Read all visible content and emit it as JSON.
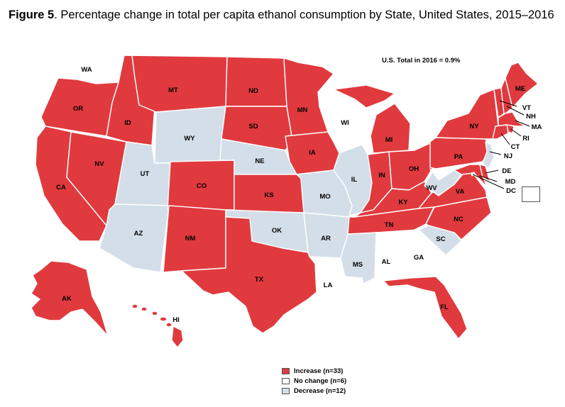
{
  "figure": {
    "label": "Figure 5",
    "caption": ". Percentage change in total per capita ethanol consumption by State, United States, 2015–2016"
  },
  "us_total": "U.S. Total in 2016 = 0.9%",
  "colors": {
    "increase": "#e03a3e",
    "no_change": "#ffffff",
    "decrease": "#d4dee8"
  },
  "legend": [
    {
      "key": "increase",
      "label": "Increase   (n=33)"
    },
    {
      "key": "no_change",
      "label": "No change   (n=6)"
    },
    {
      "key": "decrease",
      "label": "Decrease  (n=12)"
    }
  ],
  "states": {
    "WA": "no_change",
    "OR": "increase",
    "CA": "increase",
    "NV": "increase",
    "ID": "increase",
    "MT": "increase",
    "WY": "decrease",
    "UT": "decrease",
    "AZ": "decrease",
    "CO": "increase",
    "NM": "increase",
    "ND": "increase",
    "SD": "increase",
    "NE": "decrease",
    "KS": "increase",
    "OK": "decrease",
    "TX": "increase",
    "MN": "increase",
    "IA": "increase",
    "MO": "decrease",
    "AR": "decrease",
    "LA": "no_change",
    "WI": "no_change",
    "IL": "decrease",
    "MS": "decrease",
    "MI": "increase",
    "IN": "increase",
    "OH": "increase",
    "KY": "increase",
    "TN": "increase",
    "AL": "no_change",
    "GA": "no_change",
    "FL": "increase",
    "SC": "decrease",
    "NC": "increase",
    "VA": "increase",
    "WV": "decrease",
    "PA": "increase",
    "NY": "increase",
    "ME": "increase",
    "VT": "increase",
    "NH": "increase",
    "MA": "increase",
    "RI": "increase",
    "CT": "increase",
    "NJ": "decrease",
    "DE": "increase",
    "MD": "increase",
    "DC": "no_change",
    "AK": "increase",
    "HI": "increase"
  }
}
